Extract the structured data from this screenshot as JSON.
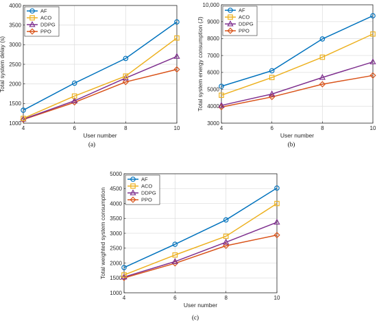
{
  "colors": {
    "AF": "#0072BD",
    "ACO": "#EDB120",
    "DDPG": "#7E2F8E",
    "PPO": "#D95319"
  },
  "chart_data": [
    {
      "id": "a",
      "type": "line",
      "caption": "(a)",
      "xlabel": "User number",
      "ylabel": "Total system delay (s)",
      "x": [
        4,
        6,
        8,
        10
      ],
      "xlim": [
        4,
        10
      ],
      "ylim": [
        1000,
        4000
      ],
      "xticks": [
        "4",
        "6",
        "8",
        "10"
      ],
      "yticks": [
        "1000",
        "1500",
        "2000",
        "2500",
        "3000",
        "3500",
        "4000"
      ],
      "grid": true,
      "legend": "top-left",
      "series": [
        {
          "name": "AF",
          "marker": "circle",
          "values": [
            1330,
            2020,
            2650,
            3580
          ]
        },
        {
          "name": "ACO",
          "marker": "square",
          "values": [
            1120,
            1690,
            2200,
            3170
          ]
        },
        {
          "name": "DDPG",
          "marker": "triangle",
          "values": [
            1100,
            1570,
            2150,
            2700
          ]
        },
        {
          "name": "PPO",
          "marker": "diamond",
          "values": [
            1090,
            1530,
            2050,
            2370
          ]
        }
      ]
    },
    {
      "id": "b",
      "type": "line",
      "caption": "(b)",
      "xlabel": "User number",
      "ylabel": "Total system energy consumption (J)",
      "x": [
        4,
        6,
        8,
        10
      ],
      "xlim": [
        4,
        10
      ],
      "ylim": [
        3000,
        10000
      ],
      "xticks": [
        "4",
        "6",
        "8",
        "10"
      ],
      "yticks": [
        "3000",
        "4000",
        "5000",
        "6000",
        "7000",
        "8000",
        "9000",
        "10,000"
      ],
      "grid": true,
      "legend": "top-left",
      "series": [
        {
          "name": "AF",
          "marker": "circle",
          "values": [
            5180,
            6100,
            7980,
            9350
          ]
        },
        {
          "name": "ACO",
          "marker": "square",
          "values": [
            4650,
            5700,
            6900,
            8270
          ]
        },
        {
          "name": "DDPG",
          "marker": "triangle",
          "values": [
            4050,
            4720,
            5700,
            6620
          ]
        },
        {
          "name": "PPO",
          "marker": "diamond",
          "values": [
            3950,
            4550,
            5300,
            5820
          ]
        }
      ]
    },
    {
      "id": "c",
      "type": "line",
      "caption": "(c)",
      "xlabel": "User number",
      "ylabel": "Total weighted system consumption",
      "x": [
        4,
        6,
        8,
        10
      ],
      "xlim": [
        4,
        10
      ],
      "ylim": [
        1000,
        5000
      ],
      "xticks": [
        "4",
        "6",
        "8",
        "10"
      ],
      "yticks": [
        "1000",
        "1500",
        "2000",
        "2500",
        "3000",
        "3500",
        "4000",
        "4500",
        "5000"
      ],
      "grid": true,
      "legend": "top-left",
      "series": [
        {
          "name": "AF",
          "marker": "circle",
          "values": [
            1850,
            2630,
            3450,
            4520
          ]
        },
        {
          "name": "ACO",
          "marker": "square",
          "values": [
            1600,
            2270,
            2900,
            4000
          ]
        },
        {
          "name": "DDPG",
          "marker": "triangle",
          "values": [
            1530,
            2050,
            2700,
            3370
          ]
        },
        {
          "name": "PPO",
          "marker": "diamond",
          "values": [
            1500,
            1990,
            2580,
            2940
          ]
        }
      ]
    }
  ]
}
